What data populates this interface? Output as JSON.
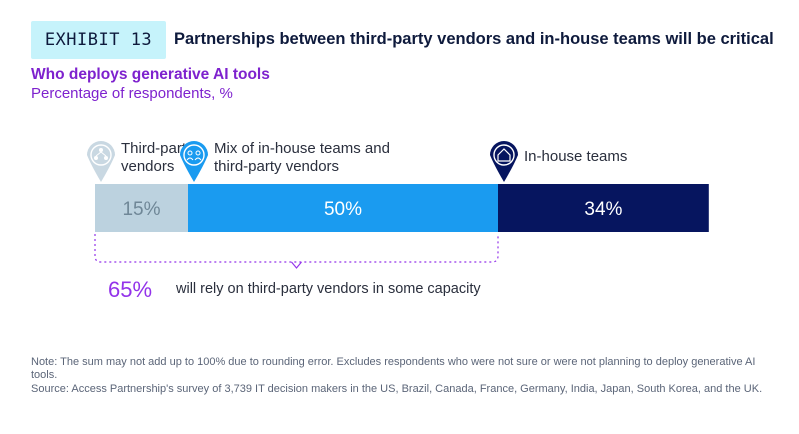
{
  "header": {
    "exhibit_label": "EXHIBIT 13",
    "title": "Partnerships between third-party vendors and in-house teams will be critical"
  },
  "subtitle": "Who deploys generative AI tools",
  "unit_label": "Percentage of respondents, %",
  "chart_data": {
    "type": "bar",
    "orientation": "horizontal-stacked",
    "title": "Who deploys generative AI tools",
    "categories": [
      "Third-party vendors",
      "Mix of in-house teams and third-party vendors",
      "In-house teams"
    ],
    "values": [
      15,
      50,
      34
    ],
    "value_labels": [
      "15%",
      "50%",
      "34%"
    ],
    "category_lines": [
      [
        "Third-party",
        "vendors"
      ],
      [
        "Mix of in-house teams and",
        "third-party vendors"
      ],
      [
        "In-house teams"
      ]
    ],
    "colors": [
      "#bcd2df",
      "#1a9bf0",
      "#06155f"
    ],
    "value_label_colors": [
      "#6f8797",
      "#ffffff",
      "#ffffff"
    ],
    "icons": [
      "people-network-icon",
      "team-icon",
      "house-icon"
    ],
    "annotation": {
      "value": "65%",
      "text": "will rely on third-party vendors in some capacity",
      "spans": [
        "Third-party vendors",
        "Mix of in-house teams and third-party vendors"
      ]
    }
  },
  "notes": {
    "note": "Note: The sum may not add up to 100% due to rounding error. Excludes respondents who were not sure or were not planning to deploy generative AI tools.",
    "source": "Source: Access Partnership's survey of 3,739 IT decision makers in the US, Brazil, Canada, France, Germany, India, Japan, South Korea, and the UK."
  }
}
